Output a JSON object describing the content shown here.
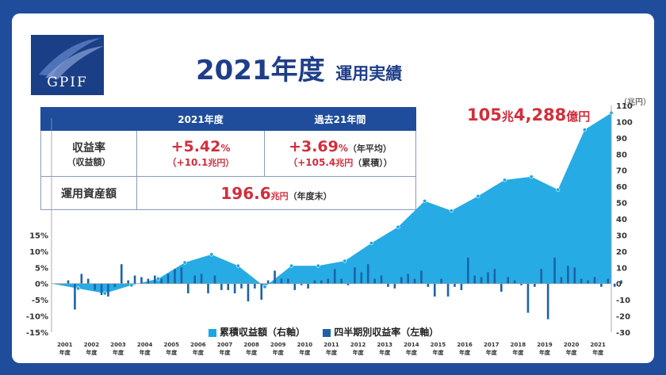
{
  "logo": {
    "text": "GPIF"
  },
  "title": {
    "main": "2021年度",
    "sub": "運用実績"
  },
  "summary": {
    "col1": "2021年度",
    "col2": "過去21年間",
    "row1_label": "収益率",
    "row1_sublabel": "（収益額）",
    "y2021_rate": "+5.42",
    "y2021_rate_unit": "%",
    "y2021_amt": "（+10.1",
    "y2021_amt_unit": "兆円）",
    "p21_rate": "+3.69",
    "p21_rate_unit": "%",
    "p21_rate_note": "（年平均）",
    "p21_amt": "（+105.4",
    "p21_amt_unit": "兆円",
    "p21_amt_note": "（累積））",
    "row2_label": "運用資産額",
    "assets": "196.6",
    "assets_unit": "兆円",
    "assets_note": "（年度末）"
  },
  "headline": {
    "n1": "105",
    "u1": "兆",
    "n2": "4,288",
    "u2": "億円"
  },
  "unit_label": "（兆円）",
  "legend": {
    "cum": "累積収益額（右軸）",
    "q": "四半期別収益率（左軸）",
    "cum_color": "#1aa6e4",
    "q_color": "#1d62a8"
  },
  "chart_data": {
    "type": "bar",
    "title": "2021年度 運用実績",
    "years": [
      "2001",
      "2002",
      "2003",
      "2004",
      "2005",
      "2006",
      "2007",
      "2008",
      "2009",
      "2010",
      "2011",
      "2012",
      "2013",
      "2014",
      "2015",
      "2016",
      "2017",
      "2018",
      "2019",
      "2020",
      "2021"
    ],
    "year_suffix": "年度",
    "left_axis": {
      "ticks": [
        "15%",
        "10%",
        "5%",
        "0%",
        "-5%",
        "-10%",
        "-15%"
      ],
      "ylim": [
        -15,
        15
      ]
    },
    "right_axis": {
      "ticks": [
        "110",
        "100",
        "90",
        "80",
        "70",
        "60",
        "50",
        "40",
        "30",
        "20",
        "10",
        "0",
        "-10",
        "-20",
        "-30"
      ],
      "ylim": [
        -30,
        110
      ]
    },
    "series": [
      {
        "name": "累積収益額（右軸）",
        "type": "area",
        "x": [
          2000.5,
          2001.5,
          2002.5,
          2003.5,
          2004.5,
          2005.5,
          2006.5,
          2007.5,
          2008.5,
          2009.5,
          2010.5,
          2011.5,
          2012.5,
          2013.5,
          2014.5,
          2015.5,
          2016.5,
          2017.5,
          2018.5,
          2019.5,
          2020.5,
          2021.5
        ],
        "values": [
          0,
          -3,
          -6,
          -1,
          3,
          13,
          18,
          11,
          -2,
          11,
          11,
          14,
          25,
          35,
          51,
          45,
          54,
          64,
          66,
          58,
          95,
          105.4
        ]
      },
      {
        "name": "四半期別収益率（左軸）",
        "type": "bar",
        "x": [
          2001.125,
          2001.375,
          2001.625,
          2001.875,
          2002.125,
          2002.375,
          2002.625,
          2002.875,
          2003.125,
          2003.375,
          2003.625,
          2003.875,
          2004.125,
          2004.375,
          2004.625,
          2004.875,
          2005.125,
          2005.375,
          2005.625,
          2005.875,
          2006.125,
          2006.375,
          2006.625,
          2006.875,
          2007.125,
          2007.375,
          2007.625,
          2007.875,
          2008.125,
          2008.375,
          2008.625,
          2008.875,
          2009.125,
          2009.375,
          2009.625,
          2009.875,
          2010.125,
          2010.375,
          2010.625,
          2010.875,
          2011.125,
          2011.375,
          2011.625,
          2011.875,
          2012.125,
          2012.375,
          2012.625,
          2012.875,
          2013.125,
          2013.375,
          2013.625,
          2013.875,
          2014.125,
          2014.375,
          2014.625,
          2014.875,
          2015.125,
          2015.375,
          2015.625,
          2015.875,
          2016.125,
          2016.375,
          2016.625,
          2016.875,
          2017.125,
          2017.375,
          2017.625,
          2017.875,
          2018.125,
          2018.375,
          2018.625,
          2018.875,
          2019.125,
          2019.375,
          2019.625,
          2019.875,
          2020.125,
          2020.375,
          2020.625,
          2020.875,
          2021.125,
          2021.375,
          2021.625,
          2021.875
        ],
        "values": [
          1,
          -8,
          3,
          1.5,
          -2,
          -3.5,
          -4,
          -1,
          6,
          1,
          2.5,
          2,
          1.5,
          2.5,
          1.5,
          3,
          4.5,
          5,
          -3,
          2.5,
          3,
          -3,
          2.5,
          -2,
          -2,
          -3,
          -1.5,
          -5.5,
          -1.5,
          -5,
          1,
          4,
          1.5,
          1.5,
          -2,
          -0.5,
          -1.5,
          1,
          1,
          1.5,
          4.5,
          1.5,
          -0.5,
          5,
          3.5,
          6,
          1.5,
          2.5,
          -1,
          -1.5,
          2,
          3,
          1.5,
          4,
          -1,
          -4,
          1.5,
          -4,
          -1,
          -2,
          8,
          2.5,
          2,
          3.5,
          4.5,
          -2.5,
          2,
          1,
          -0.5,
          -9,
          -1,
          4.5,
          -11,
          8,
          2,
          5.5,
          5,
          1.5,
          1,
          2,
          -1,
          1.5,
          -1,
          1
        ]
      }
    ]
  }
}
